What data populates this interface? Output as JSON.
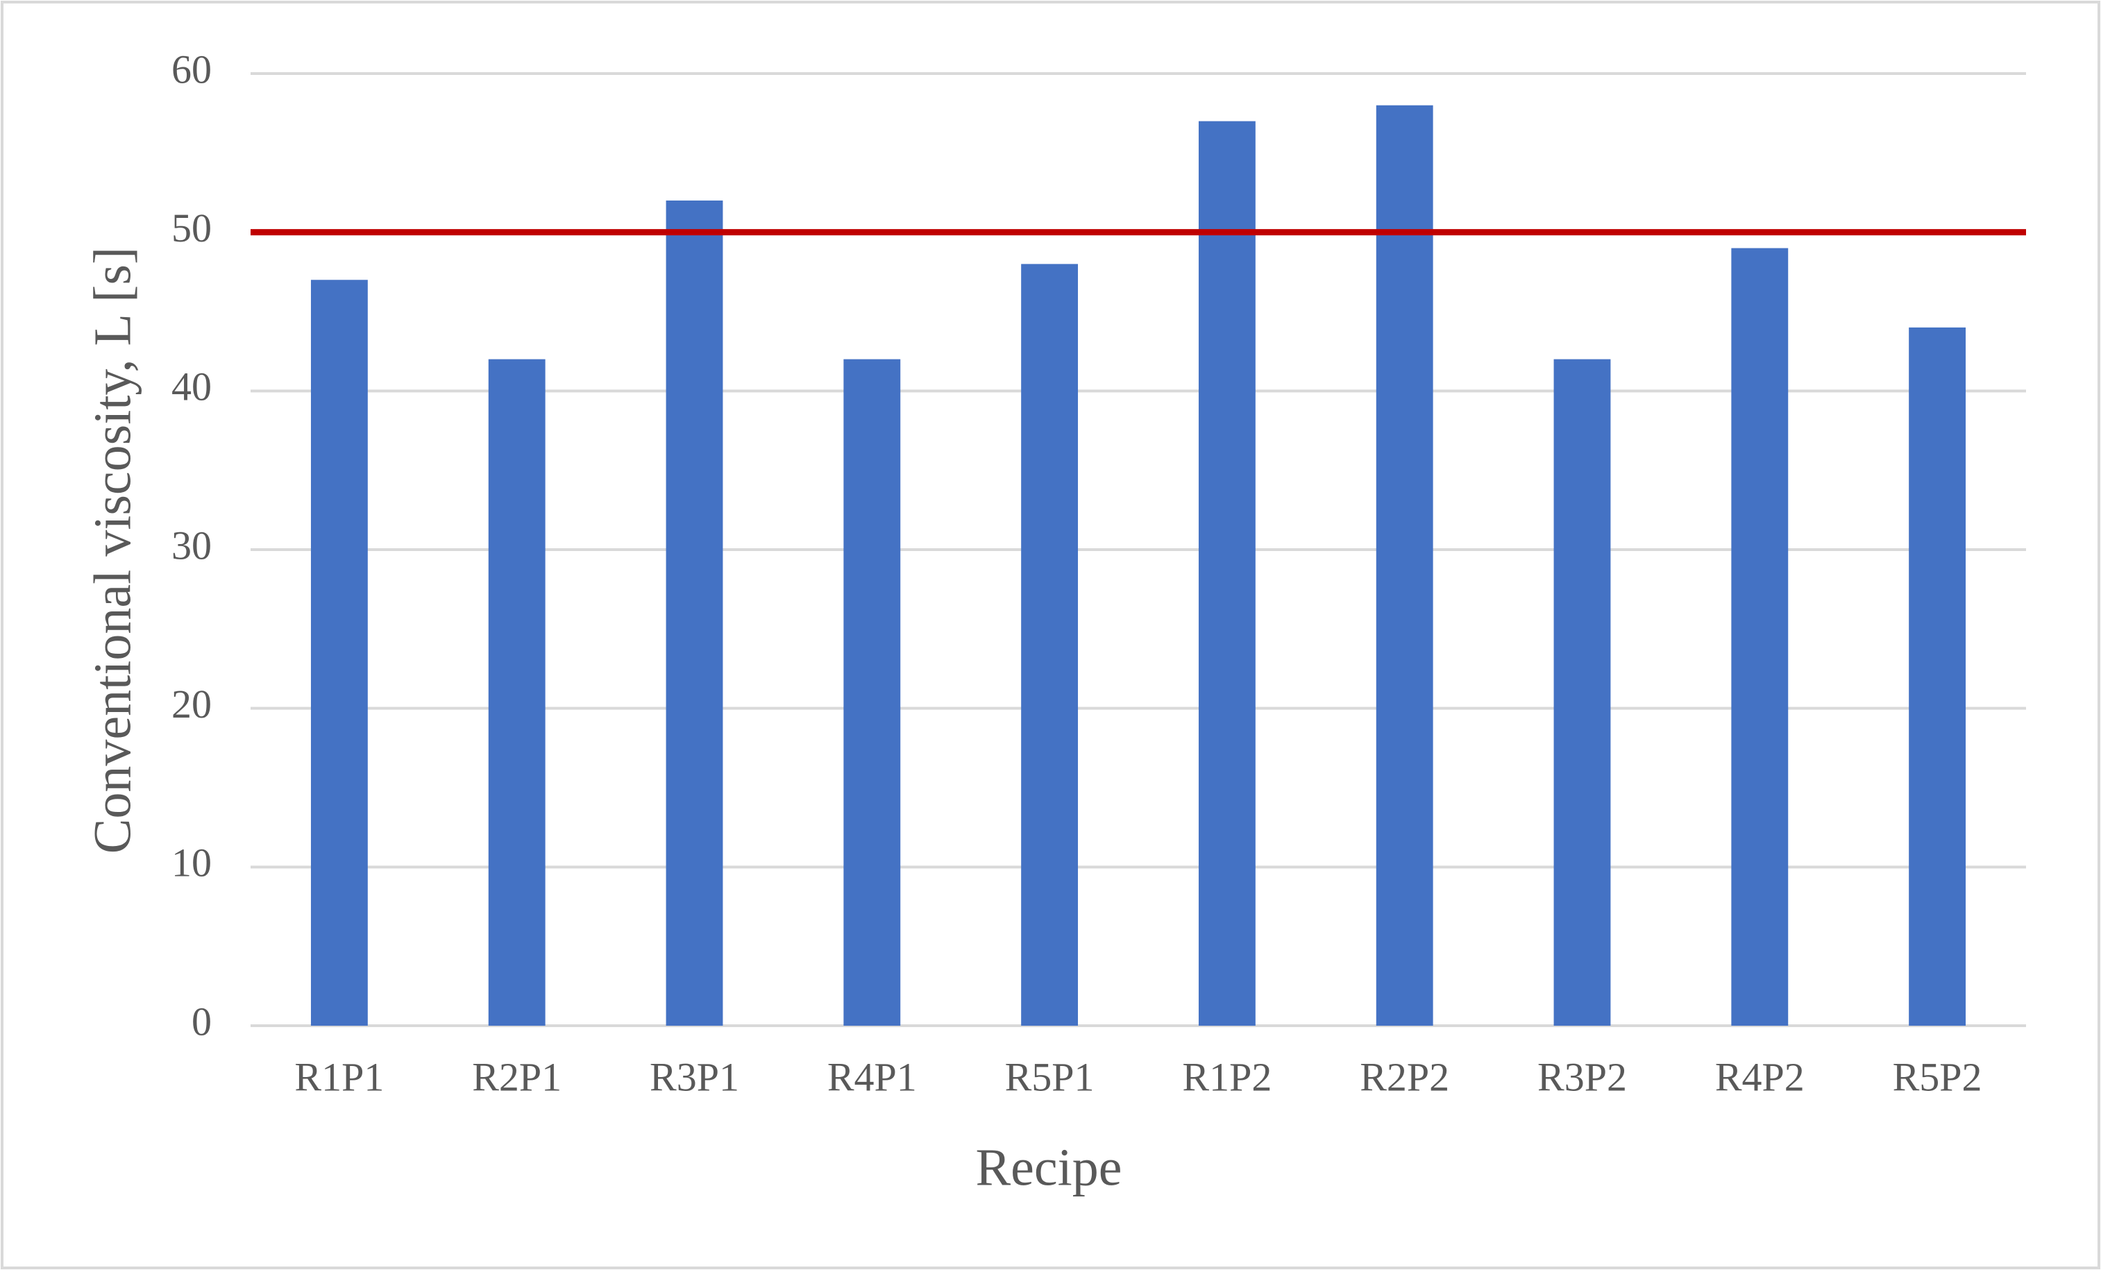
{
  "chart_data": {
    "type": "bar",
    "x_label": "Recipe",
    "y_label": "Conventional viscosity, L [s]",
    "categories": [
      "R1P1",
      "R2P1",
      "R3P1",
      "R4P1",
      "R5P1",
      "R1P2",
      "R2P2",
      "R3P2",
      "R4P2",
      "R5P2"
    ],
    "values": [
      47,
      42,
      52,
      42,
      48,
      57,
      58,
      42,
      49,
      44
    ],
    "color": "#4472c4",
    "reference_line": {
      "value": 50,
      "color": "#c00000"
    },
    "ylim": [
      0,
      60
    ],
    "yticks": [
      0,
      10,
      20,
      30,
      40,
      50,
      60
    ],
    "grid": true
  }
}
